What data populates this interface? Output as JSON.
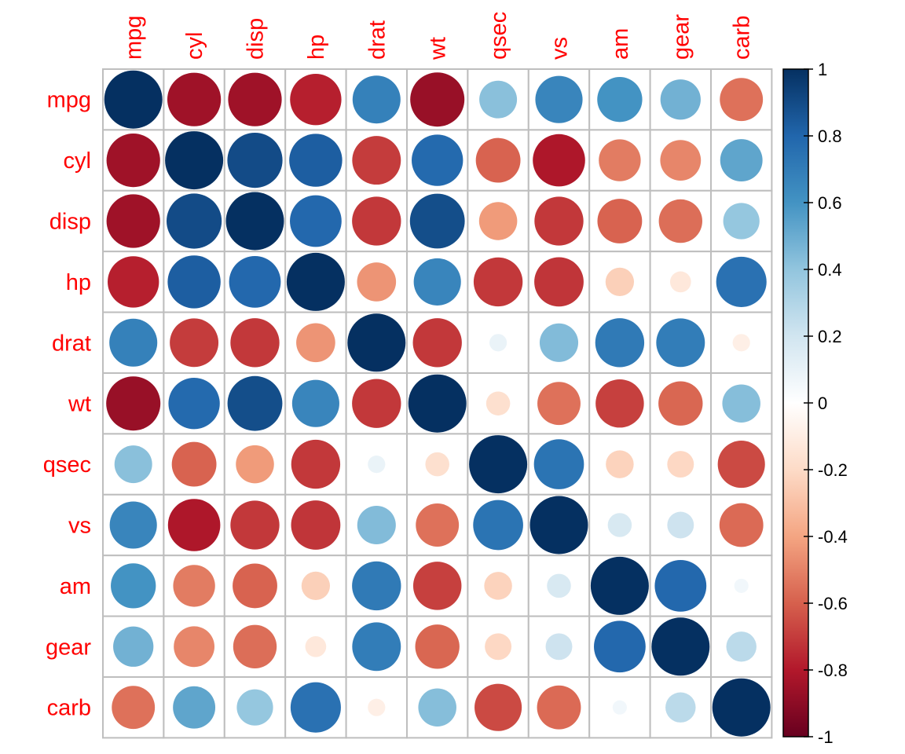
{
  "chart_data": {
    "type": "correlation-matrix",
    "variables": [
      "mpg",
      "cyl",
      "disp",
      "hp",
      "drat",
      "wt",
      "qsec",
      "vs",
      "am",
      "gear",
      "carb"
    ],
    "matrix": [
      [
        1.0,
        -0.85,
        -0.85,
        -0.78,
        0.68,
        -0.87,
        0.42,
        0.66,
        0.6,
        0.48,
        -0.55
      ],
      [
        -0.85,
        1.0,
        0.9,
        0.83,
        -0.7,
        0.78,
        -0.59,
        -0.81,
        -0.52,
        -0.49,
        0.53
      ],
      [
        -0.85,
        0.9,
        1.0,
        0.79,
        -0.71,
        0.89,
        -0.43,
        -0.71,
        -0.59,
        -0.56,
        0.39
      ],
      [
        -0.78,
        0.83,
        0.79,
        1.0,
        -0.45,
        0.66,
        -0.71,
        -0.72,
        -0.24,
        -0.13,
        0.75
      ],
      [
        0.68,
        -0.7,
        -0.71,
        -0.45,
        1.0,
        -0.71,
        0.09,
        0.44,
        0.71,
        0.7,
        -0.09
      ],
      [
        -0.87,
        0.78,
        0.89,
        0.66,
        -0.71,
        1.0,
        -0.17,
        -0.55,
        -0.69,
        -0.58,
        0.43
      ],
      [
        0.42,
        -0.59,
        -0.43,
        -0.71,
        0.09,
        -0.17,
        1.0,
        0.74,
        -0.23,
        -0.21,
        -0.66
      ],
      [
        0.66,
        -0.81,
        -0.71,
        -0.72,
        0.44,
        -0.55,
        0.74,
        1.0,
        0.17,
        0.21,
        -0.57
      ],
      [
        0.6,
        -0.52,
        -0.59,
        -0.24,
        0.71,
        -0.69,
        -0.23,
        0.17,
        1.0,
        0.79,
        0.06
      ],
      [
        0.48,
        -0.49,
        -0.56,
        -0.13,
        0.7,
        -0.58,
        -0.21,
        0.21,
        0.79,
        1.0,
        0.27
      ],
      [
        -0.55,
        0.53,
        0.39,
        0.75,
        -0.09,
        0.43,
        -0.66,
        -0.57,
        0.06,
        0.27,
        1.0
      ]
    ],
    "color_scale": {
      "min": -1,
      "max": 1,
      "ticks": [
        "1",
        "0.8",
        "0.6",
        "0.4",
        "0.2",
        "0",
        "-0.2",
        "-0.4",
        "-0.6",
        "-0.8",
        "-1"
      ],
      "palette": [
        "#67001F",
        "#B2182B",
        "#D6604D",
        "#F4A582",
        "#FDDBC7",
        "#FFFFFF",
        "#D1E5F0",
        "#92C5DE",
        "#4393C3",
        "#2166AC",
        "#053061"
      ]
    },
    "label_color": "#FF0000",
    "grid_color": "#BEBEBE",
    "legend_placement": "right"
  }
}
